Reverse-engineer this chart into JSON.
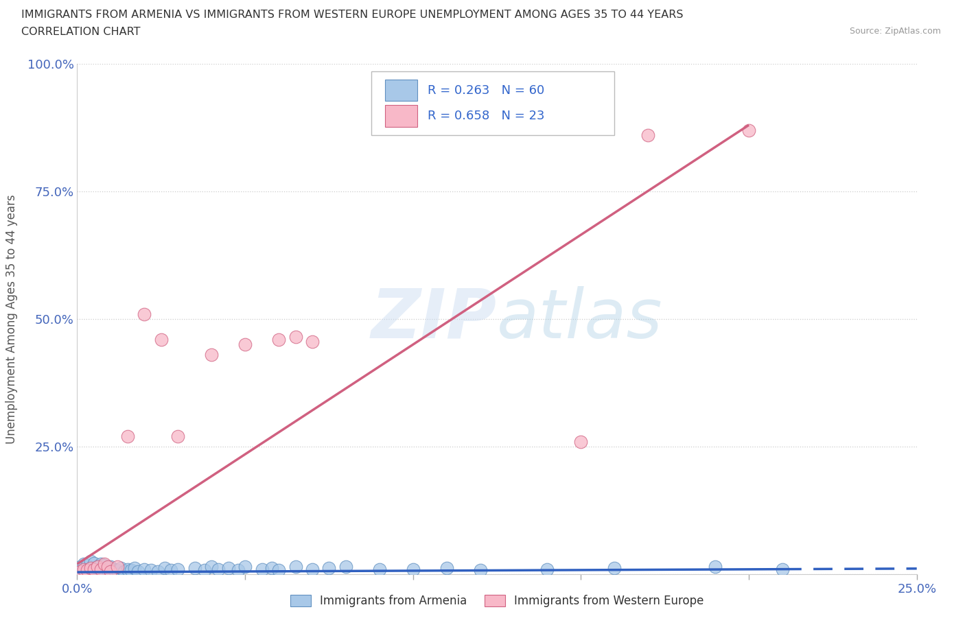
{
  "title_line1": "IMMIGRANTS FROM ARMENIA VS IMMIGRANTS FROM WESTERN EUROPE UNEMPLOYMENT AMONG AGES 35 TO 44 YEARS",
  "title_line2": "CORRELATION CHART",
  "source": "Source: ZipAtlas.com",
  "ylabel": "Unemployment Among Ages 35 to 44 years",
  "xlim": [
    0.0,
    0.25
  ],
  "ylim": [
    0.0,
    1.0
  ],
  "xticks": [
    0.0,
    0.05,
    0.1,
    0.15,
    0.2,
    0.25
  ],
  "yticks": [
    0.0,
    0.25,
    0.5,
    0.75,
    1.0
  ],
  "armenia_color": "#A8C8E8",
  "armenia_edge": "#6090C0",
  "western_europe_color": "#F8B8C8",
  "western_europe_edge": "#D06080",
  "trend_armenia_color": "#3060C0",
  "trend_western_color": "#D06080",
  "legend_label_armenia": "Immigrants from Armenia",
  "legend_label_western": "Immigrants from Western Europe",
  "R_armenia": 0.263,
  "N_armenia": 60,
  "R_western": 0.658,
  "N_western": 23,
  "background_color": "#ffffff",
  "armenia_x": [
    0.001,
    0.001,
    0.002,
    0.002,
    0.002,
    0.003,
    0.003,
    0.003,
    0.004,
    0.004,
    0.004,
    0.005,
    0.005,
    0.005,
    0.006,
    0.006,
    0.007,
    0.007,
    0.007,
    0.008,
    0.008,
    0.009,
    0.01,
    0.01,
    0.011,
    0.012,
    0.013,
    0.014,
    0.015,
    0.016,
    0.017,
    0.018,
    0.02,
    0.022,
    0.024,
    0.026,
    0.028,
    0.03,
    0.035,
    0.038,
    0.04,
    0.042,
    0.045,
    0.048,
    0.05,
    0.055,
    0.058,
    0.06,
    0.065,
    0.07,
    0.075,
    0.08,
    0.09,
    0.1,
    0.11,
    0.12,
    0.14,
    0.16,
    0.19,
    0.21
  ],
  "armenia_y": [
    0.005,
    0.015,
    0.005,
    0.01,
    0.02,
    0.003,
    0.008,
    0.018,
    0.005,
    0.012,
    0.025,
    0.004,
    0.01,
    0.022,
    0.006,
    0.015,
    0.004,
    0.009,
    0.02,
    0.005,
    0.018,
    0.008,
    0.006,
    0.015,
    0.01,
    0.008,
    0.012,
    0.006,
    0.01,
    0.008,
    0.012,
    0.006,
    0.01,
    0.008,
    0.005,
    0.012,
    0.008,
    0.01,
    0.012,
    0.008,
    0.015,
    0.01,
    0.012,
    0.008,
    0.015,
    0.01,
    0.012,
    0.008,
    0.015,
    0.01,
    0.012,
    0.015,
    0.01,
    0.01,
    0.012,
    0.008,
    0.01,
    0.012,
    0.015,
    0.01
  ],
  "western_x": [
    0.001,
    0.002,
    0.003,
    0.004,
    0.005,
    0.006,
    0.007,
    0.008,
    0.009,
    0.01,
    0.012,
    0.015,
    0.02,
    0.025,
    0.03,
    0.04,
    0.05,
    0.06,
    0.065,
    0.07,
    0.15,
    0.17,
    0.2
  ],
  "western_y": [
    0.005,
    0.01,
    0.008,
    0.012,
    0.01,
    0.015,
    0.01,
    0.02,
    0.015,
    0.005,
    0.015,
    0.27,
    0.51,
    0.46,
    0.27,
    0.43,
    0.45,
    0.46,
    0.465,
    0.455,
    0.26,
    0.86,
    0.87
  ],
  "trend_armenia_slope": 0.028,
  "trend_armenia_intercept": 0.004,
  "trend_western_slope": 4.3,
  "trend_western_intercept": 0.02
}
